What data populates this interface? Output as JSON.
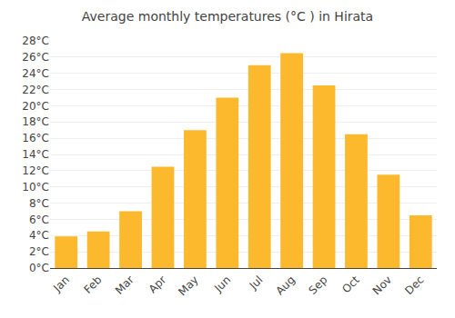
{
  "chart_data": {
    "type": "bar",
    "title": "Average monthly temperatures (°C ) in Hirata",
    "categories": [
      "Jan",
      "Feb",
      "Mar",
      "Apr",
      "May",
      "Jun",
      "Jul",
      "Aug",
      "Sep",
      "Oct",
      "Nov",
      "Dec"
    ],
    "values": [
      3.9,
      4.5,
      7.0,
      12.5,
      17.0,
      21.0,
      25.0,
      26.5,
      22.5,
      16.5,
      11.5,
      6.5
    ],
    "color": "#FDB92E",
    "ylim": [
      0,
      28
    ],
    "yticks": [
      {
        "value": 0,
        "label": "0°C"
      },
      {
        "value": 2,
        "label": "2°C"
      },
      {
        "value": 4,
        "label": "4°C"
      },
      {
        "value": 6,
        "label": "6°C"
      },
      {
        "value": 8,
        "label": "8°C"
      },
      {
        "value": 10,
        "label": "10°C"
      },
      {
        "value": 12,
        "label": "12°C"
      },
      {
        "value": 14,
        "label": "14°C"
      },
      {
        "value": 16,
        "label": "16°C"
      },
      {
        "value": 18,
        "label": "18°C"
      },
      {
        "value": 20,
        "label": "20°C"
      },
      {
        "value": 22,
        "label": "22°C"
      },
      {
        "value": 24,
        "label": "24°C"
      },
      {
        "value": 26,
        "label": "26°C"
      },
      {
        "value": 28,
        "label": "28°C"
      }
    ],
    "grid": true
  }
}
